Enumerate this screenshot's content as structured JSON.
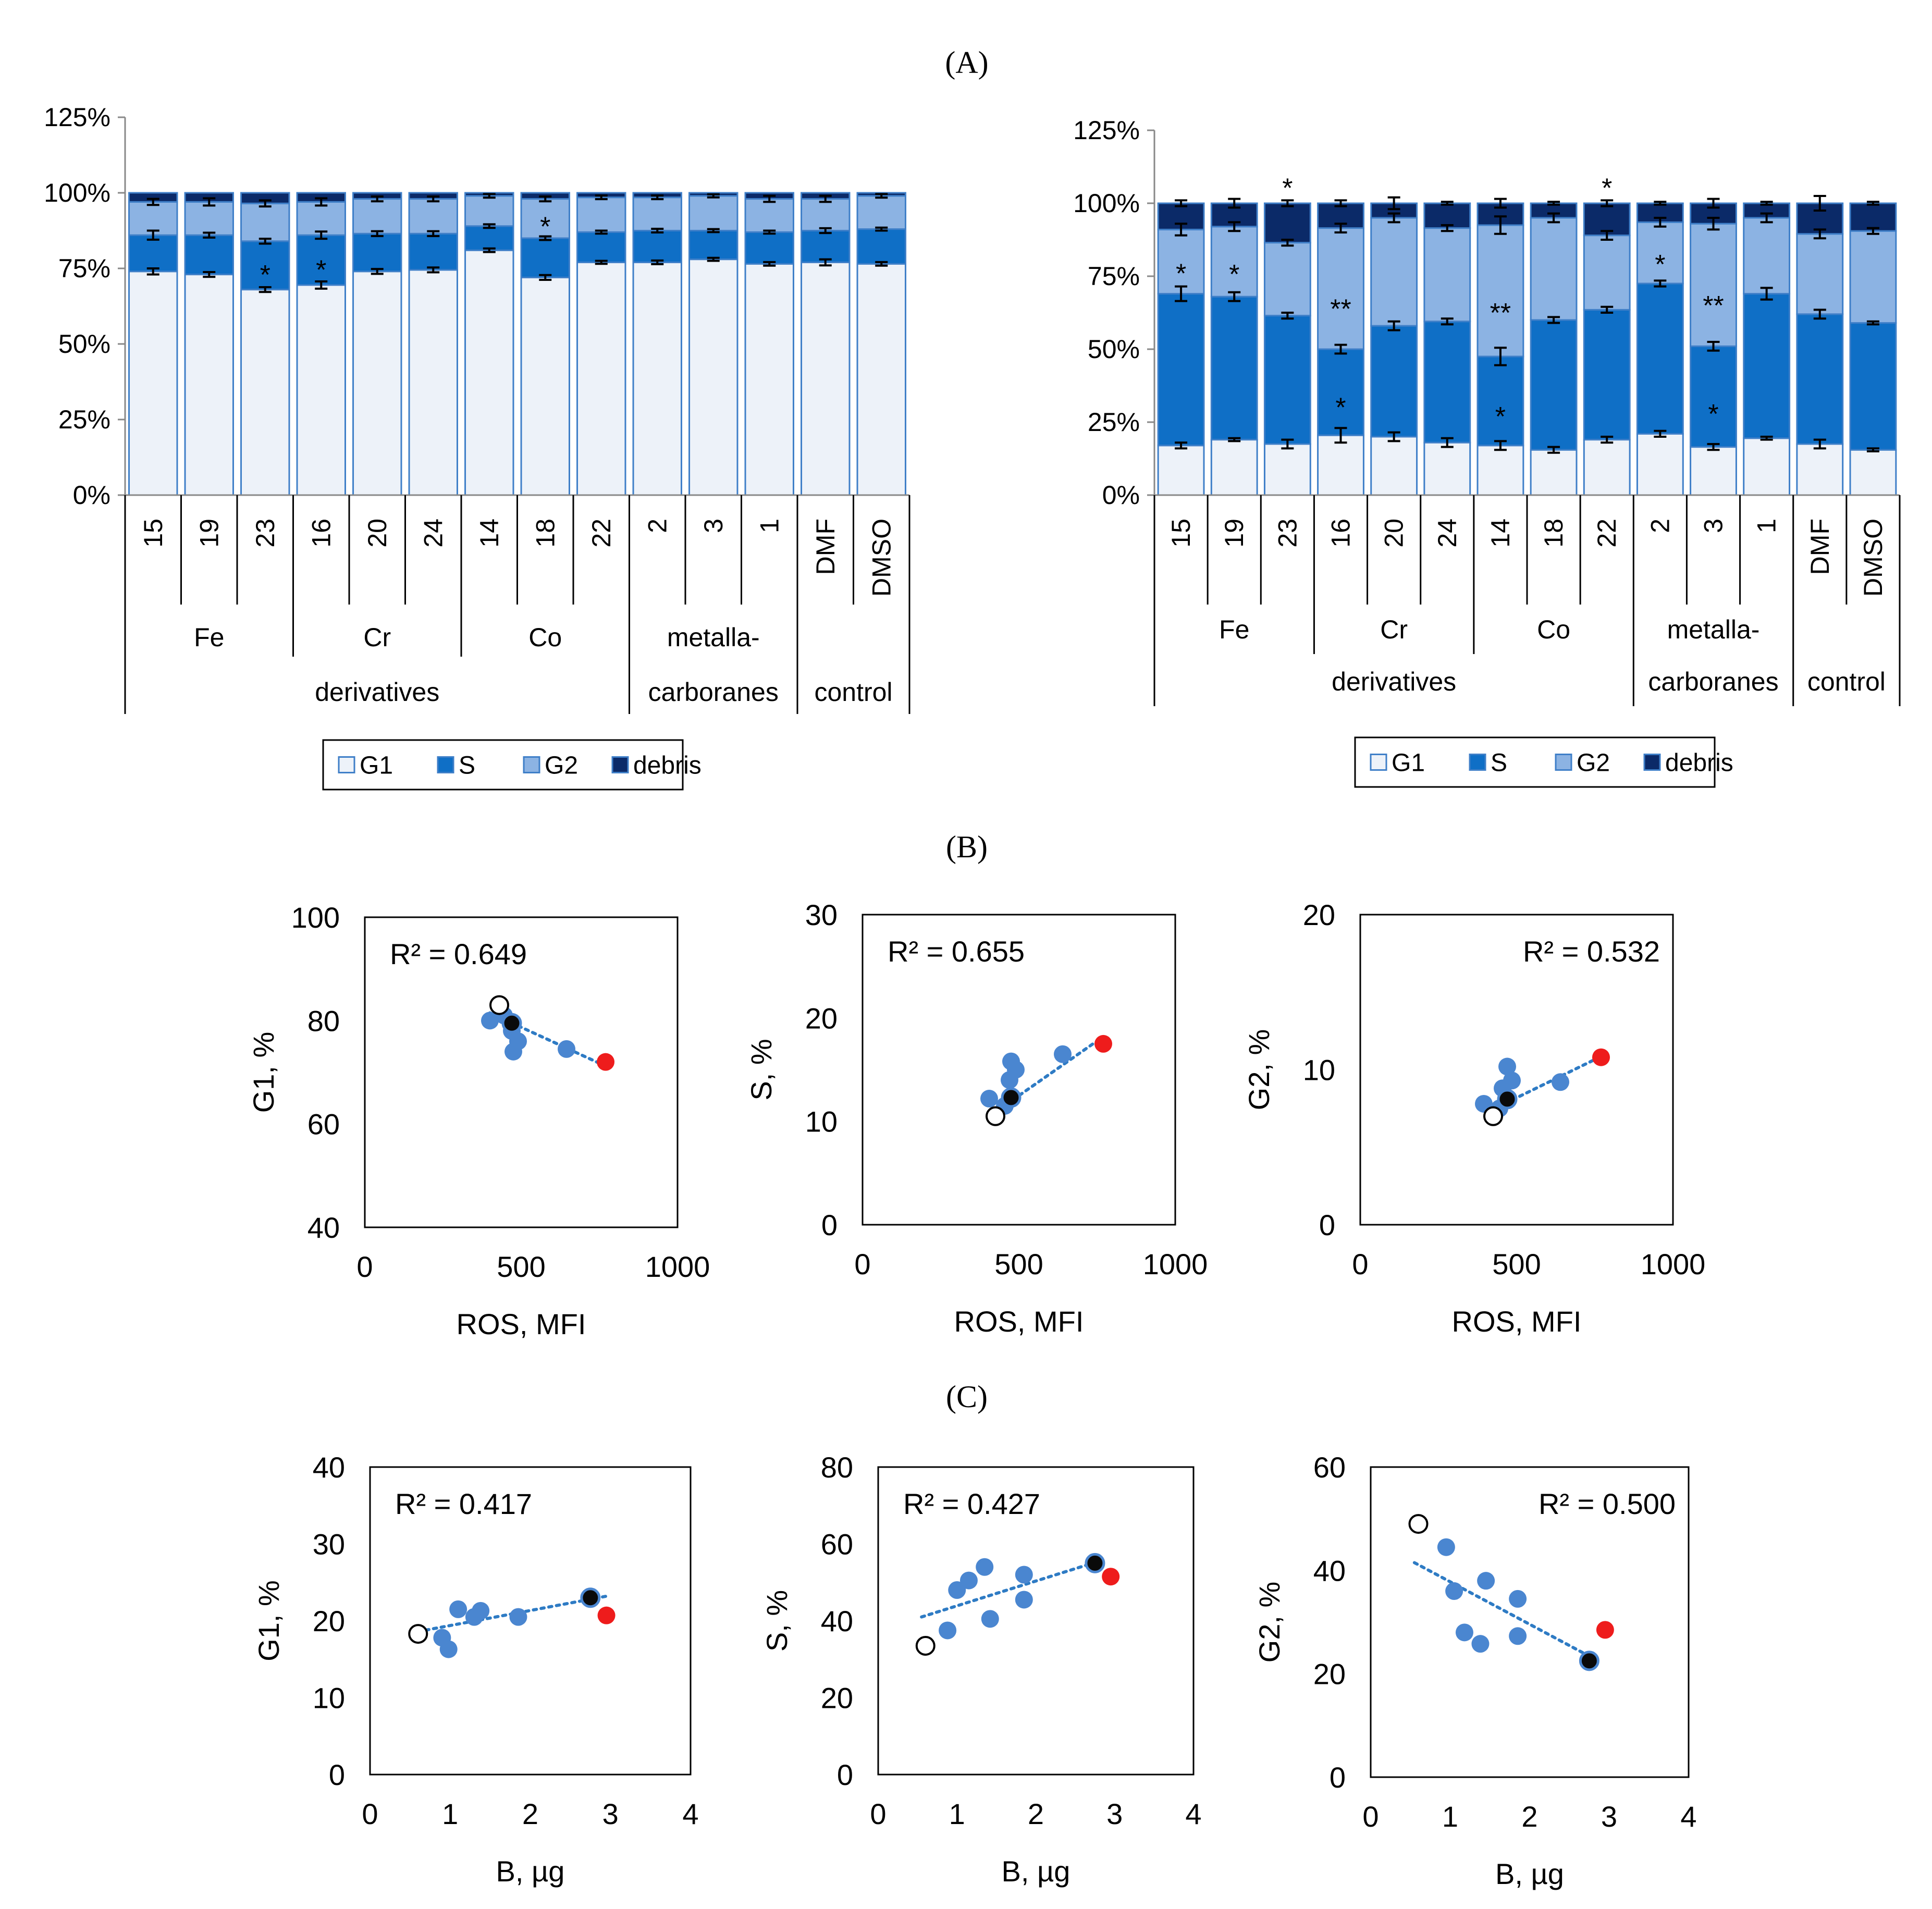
{
  "figure": {
    "panel_a_label": "(A)",
    "panel_b_label": "(B)",
    "panel_c_label": "(C)"
  },
  "colors": {
    "G1": "#edf2f9",
    "S": "#0f6fc6",
    "G2": "#8cb3e3",
    "debris": "#0b2a68",
    "bar_border": "#3f7fc8",
    "blue_point": "#4a86d0",
    "red_point": "#ee1c1c",
    "black_point": "#0a0a0a",
    "trend": "#2e7bc4"
  },
  "chart_data": [
    {
      "id": "A-left",
      "type": "bar",
      "stacked": true,
      "title": "",
      "ylabel": "",
      "ylim": [
        0,
        125
      ],
      "yticks": [
        "0%",
        "25%",
        "50%",
        "75%",
        "100%",
        "125%"
      ],
      "categories": [
        "15",
        "19",
        "23",
        "16",
        "20",
        "24",
        "14",
        "18",
        "22",
        "2",
        "3",
        "1",
        "DMF",
        "DMSO"
      ],
      "series": [
        {
          "name": "G1",
          "values": [
            74,
            73,
            68,
            69.5,
            74,
            74.5,
            81,
            72,
            77,
            77,
            78,
            76.5,
            77,
            76.5
          ]
        },
        {
          "name": "S",
          "values": [
            12,
            13,
            16,
            16.5,
            12.5,
            12,
            8,
            13,
            10,
            10.5,
            9.5,
            10.5,
            10.5,
            11.5
          ]
        },
        {
          "name": "G2",
          "values": [
            11,
            11,
            12.5,
            11,
            11.5,
            11.5,
            10,
            13,
            11.5,
            11,
            11.5,
            11,
            10.5,
            11
          ]
        },
        {
          "name": "debris",
          "values": [
            3,
            3,
            3.5,
            3,
            2,
            2,
            1,
            2,
            1.5,
            1.5,
            1,
            2,
            2,
            1
          ]
        }
      ],
      "error_bars": {
        "G1": [
          1,
          0.8,
          0.8,
          1.2,
          0.8,
          0.8,
          0.6,
          0.8,
          0.5,
          0.6,
          0.5,
          0.6,
          1,
          0.6
        ],
        "S": [
          1.5,
          0.8,
          0.8,
          1.2,
          0.8,
          0.8,
          0.6,
          0.6,
          0.5,
          0.6,
          0.5,
          0.5,
          0.8,
          0.5
        ],
        "G2": [
          1,
          1.2,
          1,
          1.2,
          0.8,
          0.8,
          0.6,
          0.8,
          0.6,
          0.6,
          0.5,
          1,
          1,
          0.6
        ]
      },
      "annotations": [
        {
          "category": "23",
          "segment": "S",
          "text": "*"
        },
        {
          "category": "16",
          "segment": "S",
          "text": "*"
        },
        {
          "category": "18",
          "segment": "G2",
          "text": "*"
        }
      ],
      "groups_level1": [
        {
          "label": "Fe",
          "from": 0,
          "to": 2
        },
        {
          "label": "Cr",
          "from": 3,
          "to": 5
        },
        {
          "label": "Co",
          "from": 6,
          "to": 8
        },
        {
          "label": "metalla-",
          "label2": "carboranes",
          "from": 9,
          "to": 11
        },
        {
          "label": "",
          "label2": "control",
          "from": 12,
          "to": 13
        }
      ],
      "groups_level2": [
        {
          "label": "derivatives",
          "from": 0,
          "to": 8
        }
      ],
      "legend": [
        "G1",
        "S",
        "G2",
        "debris"
      ],
      "legend_position": "bottom"
    },
    {
      "id": "A-right",
      "type": "bar",
      "stacked": true,
      "title": "",
      "ylabel": "",
      "ylim": [
        0,
        125
      ],
      "yticks": [
        "0%",
        "25%",
        "50%",
        "75%",
        "100%",
        "125%"
      ],
      "categories": [
        "15",
        "19",
        "23",
        "16",
        "20",
        "24",
        "14",
        "18",
        "22",
        "2",
        "3",
        "1",
        "DMF",
        "DMSO"
      ],
      "series": [
        {
          "name": "G1",
          "values": [
            17,
            19,
            17.5,
            20.5,
            20,
            18,
            17,
            15.5,
            19,
            21,
            16.5,
            19.5,
            17.5,
            15.5
          ]
        },
        {
          "name": "S",
          "values": [
            52,
            49,
            44,
            29.5,
            38,
            41.5,
            30.5,
            44.5,
            44.5,
            51.5,
            34.5,
            49.5,
            44.5,
            43.5
          ]
        },
        {
          "name": "G2",
          "values": [
            22,
            24,
            25,
            41.5,
            37,
            32,
            45,
            35,
            25.5,
            21,
            42,
            26,
            27.5,
            31.5
          ]
        },
        {
          "name": "debris",
          "values": [
            9,
            8,
            13.5,
            8.5,
            5,
            8.5,
            7.5,
            5,
            11,
            6.5,
            7,
            5,
            10.5,
            9.5
          ]
        }
      ],
      "error_bars": {
        "G1": [
          1,
          0.5,
          1.5,
          2.5,
          1.5,
          1.5,
          1.5,
          1,
          1,
          1,
          1,
          0.5,
          1.5,
          0.5
        ],
        "S": [
          2.5,
          1.5,
          1,
          1.5,
          1.5,
          1,
          3,
          1,
          1,
          1,
          1.5,
          2,
          1.5,
          0.5
        ],
        "G2": [
          2,
          1.5,
          1,
          1.5,
          1.5,
          1,
          3,
          1.5,
          1.5,
          1.5,
          2,
          1.5,
          1.5,
          1
        ],
        "debris": [
          1,
          1.5,
          1,
          1,
          2,
          0.5,
          1.5,
          0.5,
          1,
          0.5,
          1.5,
          0.5,
          2.5,
          0.5
        ]
      },
      "annotations": [
        {
          "category": "15",
          "segment": "G2",
          "text": "*"
        },
        {
          "category": "19",
          "segment": "G2",
          "text": "*"
        },
        {
          "category": "23",
          "segment": "top",
          "text": "*"
        },
        {
          "category": "16",
          "segment": "G2",
          "text": "**"
        },
        {
          "category": "16",
          "segment": "S",
          "text": "*"
        },
        {
          "category": "14",
          "segment": "G2",
          "text": "**"
        },
        {
          "category": "14",
          "segment": "S",
          "text": "*"
        },
        {
          "category": "22",
          "segment": "top",
          "text": "*"
        },
        {
          "category": "2",
          "segment": "G2",
          "text": "*"
        },
        {
          "category": "3",
          "segment": "G2",
          "text": "**"
        },
        {
          "category": "3",
          "segment": "S",
          "text": "*"
        }
      ],
      "groups_level1": [
        {
          "label": "Fe",
          "from": 0,
          "to": 2
        },
        {
          "label": "Cr",
          "from": 3,
          "to": 5
        },
        {
          "label": "Co",
          "from": 6,
          "to": 8
        },
        {
          "label": "metalla-",
          "label2": "carboranes",
          "from": 9,
          "to": 11
        },
        {
          "label": "",
          "label2": "control",
          "from": 12,
          "to": 13
        }
      ],
      "groups_level2": [
        {
          "label": "derivatives",
          "from": 0,
          "to": 8
        }
      ],
      "legend": [
        "G1",
        "S",
        "G2",
        "debris"
      ],
      "legend_position": "bottom"
    },
    {
      "id": "B1",
      "type": "scatter",
      "title": "",
      "xlabel": "ROS, MFI",
      "ylabel": "G1, %",
      "xlim": [
        0,
        1000
      ],
      "ylim": [
        40,
        100
      ],
      "xticks": [
        "0",
        "500",
        "1000"
      ],
      "yticks": [
        "40",
        "60",
        "80",
        "100"
      ],
      "r2": "R² = 0.649",
      "r2_position": "top-left",
      "points": [
        {
          "x": 400,
          "y": 80,
          "kind": "blue"
        },
        {
          "x": 445,
          "y": 81,
          "kind": "blue"
        },
        {
          "x": 470,
          "y": 78,
          "kind": "blue"
        },
        {
          "x": 490,
          "y": 76,
          "kind": "blue"
        },
        {
          "x": 475,
          "y": 74,
          "kind": "blue"
        },
        {
          "x": 645,
          "y": 74.5,
          "kind": "blue"
        },
        {
          "x": 470,
          "y": 79.5,
          "kind": "black"
        },
        {
          "x": 430,
          "y": 83,
          "kind": "white"
        },
        {
          "x": 770,
          "y": 72,
          "kind": "red"
        }
      ],
      "trend": [
        [
          400,
          81.5
        ],
        [
          770,
          71.2
        ]
      ]
    },
    {
      "id": "B2",
      "type": "scatter",
      "title": "",
      "xlabel": "ROS, MFI",
      "ylabel": "S, %",
      "xlim": [
        0,
        1000
      ],
      "ylim": [
        0,
        30
      ],
      "xticks": [
        "0",
        "500",
        "1000"
      ],
      "yticks": [
        "0",
        "10",
        "20",
        "30"
      ],
      "r2": "R² = 0.655",
      "r2_position": "top-left",
      "points": [
        {
          "x": 405,
          "y": 12.2,
          "kind": "blue"
        },
        {
          "x": 455,
          "y": 11.5,
          "kind": "blue"
        },
        {
          "x": 470,
          "y": 14,
          "kind": "blue"
        },
        {
          "x": 475,
          "y": 15.8,
          "kind": "blue"
        },
        {
          "x": 490,
          "y": 15,
          "kind": "blue"
        },
        {
          "x": 640,
          "y": 16.5,
          "kind": "blue"
        },
        {
          "x": 475,
          "y": 12.3,
          "kind": "black"
        },
        {
          "x": 425,
          "y": 10.5,
          "kind": "white"
        },
        {
          "x": 770,
          "y": 17.5,
          "kind": "red"
        }
      ],
      "trend": [
        [
          420,
          10.8
        ],
        [
          770,
          18.2
        ]
      ]
    },
    {
      "id": "B3",
      "type": "scatter",
      "title": "",
      "xlabel": "ROS, MFI",
      "ylabel": "G2, %",
      "xlim": [
        0,
        1000
      ],
      "ylim": [
        0,
        20
      ],
      "xticks": [
        "0",
        "500",
        "1000"
      ],
      "yticks": [
        "0",
        "10",
        "20"
      ],
      "r2": "R² = 0.532",
      "r2_position": "top-right",
      "points": [
        {
          "x": 395,
          "y": 7.8,
          "kind": "blue"
        },
        {
          "x": 455,
          "y": 8.8,
          "kind": "blue"
        },
        {
          "x": 470,
          "y": 10.2,
          "kind": "blue"
        },
        {
          "x": 485,
          "y": 9.3,
          "kind": "blue"
        },
        {
          "x": 445,
          "y": 7.5,
          "kind": "blue"
        },
        {
          "x": 640,
          "y": 9.2,
          "kind": "blue"
        },
        {
          "x": 470,
          "y": 8.1,
          "kind": "black"
        },
        {
          "x": 425,
          "y": 7,
          "kind": "white"
        },
        {
          "x": 770,
          "y": 10.8,
          "kind": "red"
        }
      ],
      "trend": [
        [
          420,
          7.4
        ],
        [
          775,
          10.9
        ]
      ]
    },
    {
      "id": "C1",
      "type": "scatter",
      "title": "",
      "xlabel": "B, µg",
      "ylabel": "G1, %",
      "xlim": [
        0,
        4
      ],
      "ylim": [
        0,
        40
      ],
      "xticks": [
        "0",
        "1",
        "2",
        "3",
        "4"
      ],
      "yticks": [
        "0",
        "10",
        "20",
        "30",
        "40"
      ],
      "r2": "R² = 0.417",
      "r2_position": "top-left",
      "points": [
        {
          "x": 0.9,
          "y": 17.8,
          "kind": "blue"
        },
        {
          "x": 0.98,
          "y": 16.3,
          "kind": "blue"
        },
        {
          "x": 1.1,
          "y": 21.5,
          "kind": "blue"
        },
        {
          "x": 1.3,
          "y": 20.5,
          "kind": "blue"
        },
        {
          "x": 1.38,
          "y": 21.3,
          "kind": "blue"
        },
        {
          "x": 1.85,
          "y": 20.5,
          "kind": "blue"
        },
        {
          "x": 2.75,
          "y": 23,
          "kind": "black"
        },
        {
          "x": 0.6,
          "y": 18.3,
          "kind": "white"
        },
        {
          "x": 2.95,
          "y": 20.7,
          "kind": "red"
        }
      ],
      "trend": [
        [
          0.6,
          18.6
        ],
        [
          2.95,
          23.2
        ]
      ]
    },
    {
      "id": "C2",
      "type": "scatter",
      "title": "",
      "xlabel": "B, µg",
      "ylabel": "S, %",
      "xlim": [
        0,
        4
      ],
      "ylim": [
        0,
        80
      ],
      "xticks": [
        "0",
        "1",
        "2",
        "3",
        "4"
      ],
      "yticks": [
        "0",
        "20",
        "40",
        "60",
        "80"
      ],
      "r2": "R² = 0.427",
      "r2_position": "top-left",
      "points": [
        {
          "x": 0.88,
          "y": 37.5,
          "kind": "blue"
        },
        {
          "x": 1.0,
          "y": 48,
          "kind": "blue"
        },
        {
          "x": 1.15,
          "y": 50.5,
          "kind": "blue"
        },
        {
          "x": 1.35,
          "y": 54,
          "kind": "blue"
        },
        {
          "x": 1.42,
          "y": 40.5,
          "kind": "blue"
        },
        {
          "x": 1.85,
          "y": 52,
          "kind": "blue"
        },
        {
          "x": 1.85,
          "y": 45.5,
          "kind": "blue"
        },
        {
          "x": 2.75,
          "y": 55,
          "kind": "black"
        },
        {
          "x": 0.6,
          "y": 33.5,
          "kind": "white"
        },
        {
          "x": 2.95,
          "y": 51.5,
          "kind": "red"
        }
      ],
      "trend": [
        [
          0.55,
          41
        ],
        [
          2.8,
          55.5
        ]
      ]
    },
    {
      "id": "C3",
      "type": "scatter",
      "title": "",
      "xlabel": "B, µg",
      "ylabel": "G2, %",
      "xlim": [
        0,
        4
      ],
      "ylim": [
        0,
        60
      ],
      "xticks": [
        "0",
        "1",
        "2",
        "3",
        "4"
      ],
      "yticks": [
        "0",
        "20",
        "40",
        "60"
      ],
      "r2": "R² = 0.500",
      "r2_position": "top-right",
      "points": [
        {
          "x": 0.95,
          "y": 44.5,
          "kind": "blue"
        },
        {
          "x": 1.05,
          "y": 36,
          "kind": "blue"
        },
        {
          "x": 1.18,
          "y": 28,
          "kind": "blue"
        },
        {
          "x": 1.38,
          "y": 25.8,
          "kind": "blue"
        },
        {
          "x": 1.45,
          "y": 38,
          "kind": "blue"
        },
        {
          "x": 1.85,
          "y": 34.5,
          "kind": "blue"
        },
        {
          "x": 1.85,
          "y": 27.3,
          "kind": "blue"
        },
        {
          "x": 2.75,
          "y": 22.5,
          "kind": "black"
        },
        {
          "x": 0.6,
          "y": 49,
          "kind": "white"
        },
        {
          "x": 2.95,
          "y": 28.5,
          "kind": "red"
        }
      ],
      "trend": [
        [
          0.55,
          41.5
        ],
        [
          2.8,
          23
        ]
      ]
    }
  ]
}
